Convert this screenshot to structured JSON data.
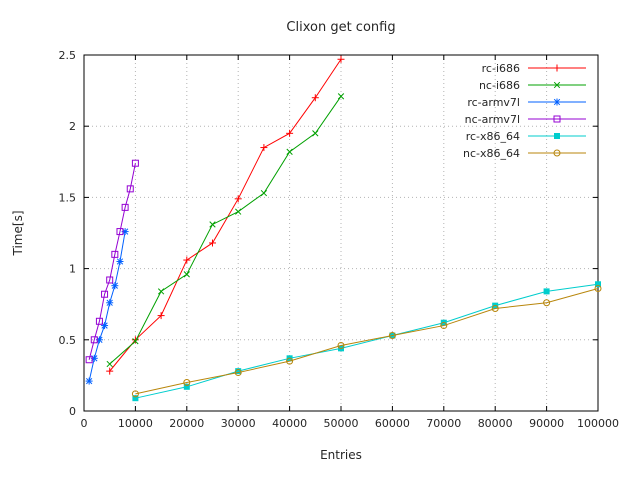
{
  "window": {
    "title": "Clixon get config"
  },
  "chart_data": {
    "type": "line",
    "title": "Clixon get config",
    "xlabel": "Entries",
    "ylabel": "Time[s]",
    "xlim": [
      0,
      100000
    ],
    "ylim": [
      0,
      2.5
    ],
    "xticks": [
      0,
      10000,
      20000,
      30000,
      40000,
      50000,
      60000,
      70000,
      80000,
      90000,
      100000
    ],
    "yticks": [
      0,
      0.5,
      1,
      1.5,
      2,
      2.5
    ],
    "grid": true,
    "legend_position": "top-right-inside",
    "series": [
      {
        "name": "rc-i686",
        "color": "#ff0000",
        "marker": "plus",
        "x": [
          5000,
          10000,
          15000,
          20000,
          25000,
          30000,
          35000,
          40000,
          45000,
          50000
        ],
        "y": [
          0.28,
          0.5,
          0.67,
          1.06,
          1.18,
          1.49,
          1.85,
          1.95,
          2.2,
          2.47
        ]
      },
      {
        "name": "nc-i686",
        "color": "#00a000",
        "marker": "cross",
        "x": [
          5000,
          10000,
          15000,
          20000,
          25000,
          30000,
          35000,
          40000,
          45000,
          50000
        ],
        "y": [
          0.33,
          0.49,
          0.84,
          0.96,
          1.31,
          1.4,
          1.53,
          1.82,
          1.95,
          2.21
        ]
      },
      {
        "name": "rc-armv7l",
        "color": "#0060ff",
        "marker": "asterisk",
        "x": [
          1000,
          2000,
          3000,
          4000,
          5000,
          6000,
          7000,
          8000
        ],
        "y": [
          0.21,
          0.37,
          0.5,
          0.6,
          0.76,
          0.88,
          1.05,
          1.26
        ]
      },
      {
        "name": "nc-armv7l",
        "color": "#9400d3",
        "marker": "square-open",
        "x": [
          1000,
          2000,
          3000,
          4000,
          5000,
          6000,
          7000,
          8000,
          9000,
          10000
        ],
        "y": [
          0.36,
          0.5,
          0.63,
          0.82,
          0.92,
          1.1,
          1.26,
          1.43,
          1.56,
          1.74
        ]
      },
      {
        "name": "rc-x86_64",
        "color": "#00cdcd",
        "marker": "square-filled",
        "x": [
          10000,
          20000,
          30000,
          40000,
          50000,
          60000,
          70000,
          80000,
          90000,
          100000
        ],
        "y": [
          0.09,
          0.17,
          0.28,
          0.37,
          0.44,
          0.53,
          0.62,
          0.74,
          0.84,
          0.89
        ]
      },
      {
        "name": "nc-x86_64",
        "color": "#b8860b",
        "marker": "circle-open",
        "x": [
          10000,
          20000,
          30000,
          40000,
          50000,
          60000,
          70000,
          80000,
          90000,
          100000
        ],
        "y": [
          0.12,
          0.2,
          0.27,
          0.35,
          0.46,
          0.53,
          0.6,
          0.72,
          0.76,
          0.86
        ]
      }
    ]
  }
}
